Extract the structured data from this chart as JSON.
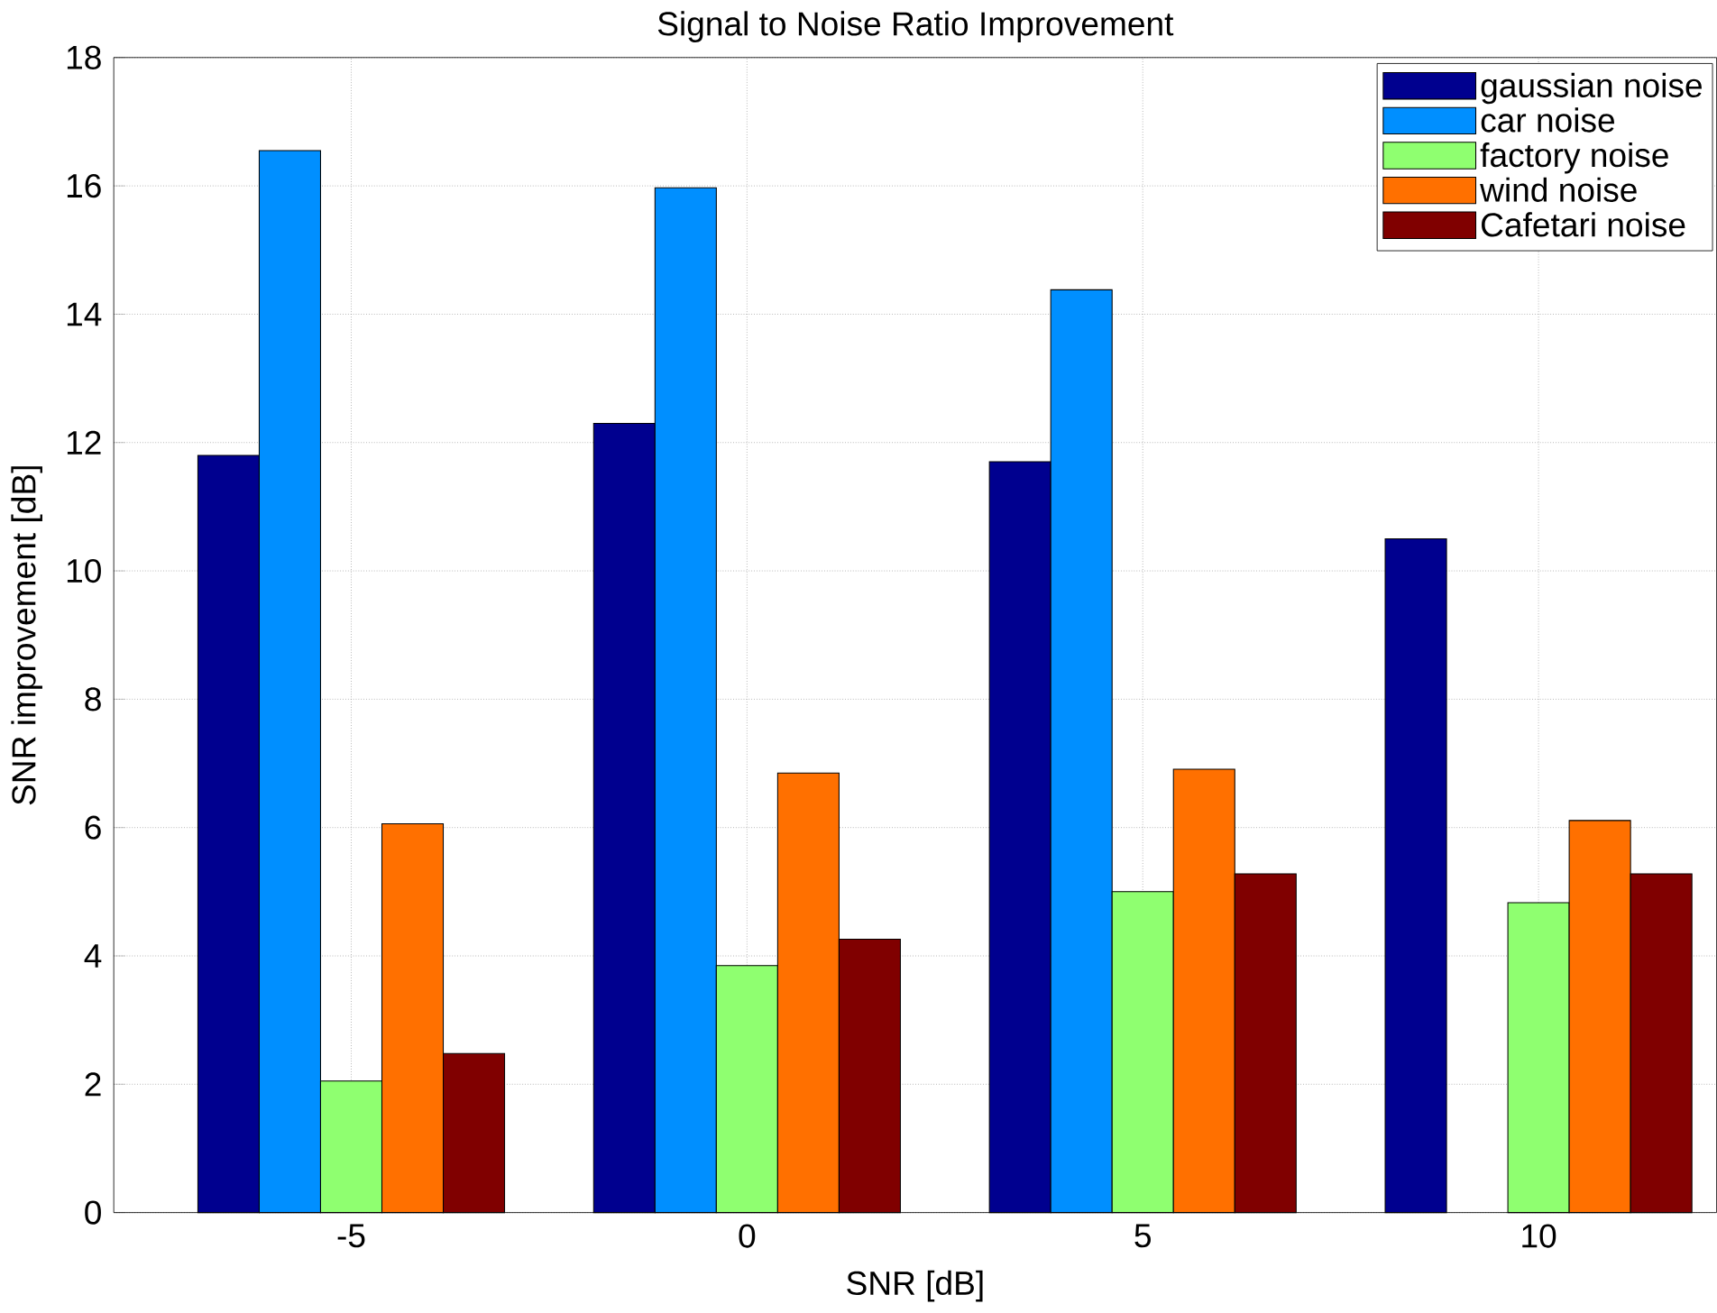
{
  "chart_data": {
    "type": "bar",
    "title": "Signal to Noise Ratio Improvement",
    "xlabel": "SNR [dB]",
    "ylabel": "SNR improvement [dB]",
    "categories": [
      "-5",
      "0",
      "5",
      "10"
    ],
    "series": [
      {
        "name": "gaussian noise",
        "color": "#00008f",
        "values": [
          11.8,
          12.3,
          11.7,
          10.5
        ]
      },
      {
        "name": "car noise",
        "color": "#008fff",
        "values": [
          16.55,
          15.97,
          14.38,
          null
        ]
      },
      {
        "name": "factory noise",
        "color": "#8fff70",
        "values": [
          2.05,
          3.85,
          5.0,
          4.83
        ]
      },
      {
        "name": "wind noise",
        "color": "#ff7000",
        "values": [
          6.06,
          6.85,
          6.91,
          6.11
        ]
      },
      {
        "name": "Cafetari noise",
        "color": "#800000",
        "values": [
          2.48,
          4.26,
          5.28,
          5.28
        ]
      }
    ],
    "ylim": [
      0,
      18
    ],
    "yticks": [
      0,
      2,
      4,
      6,
      8,
      10,
      12,
      14,
      16,
      18
    ],
    "grid": true,
    "legend": "top right"
  }
}
